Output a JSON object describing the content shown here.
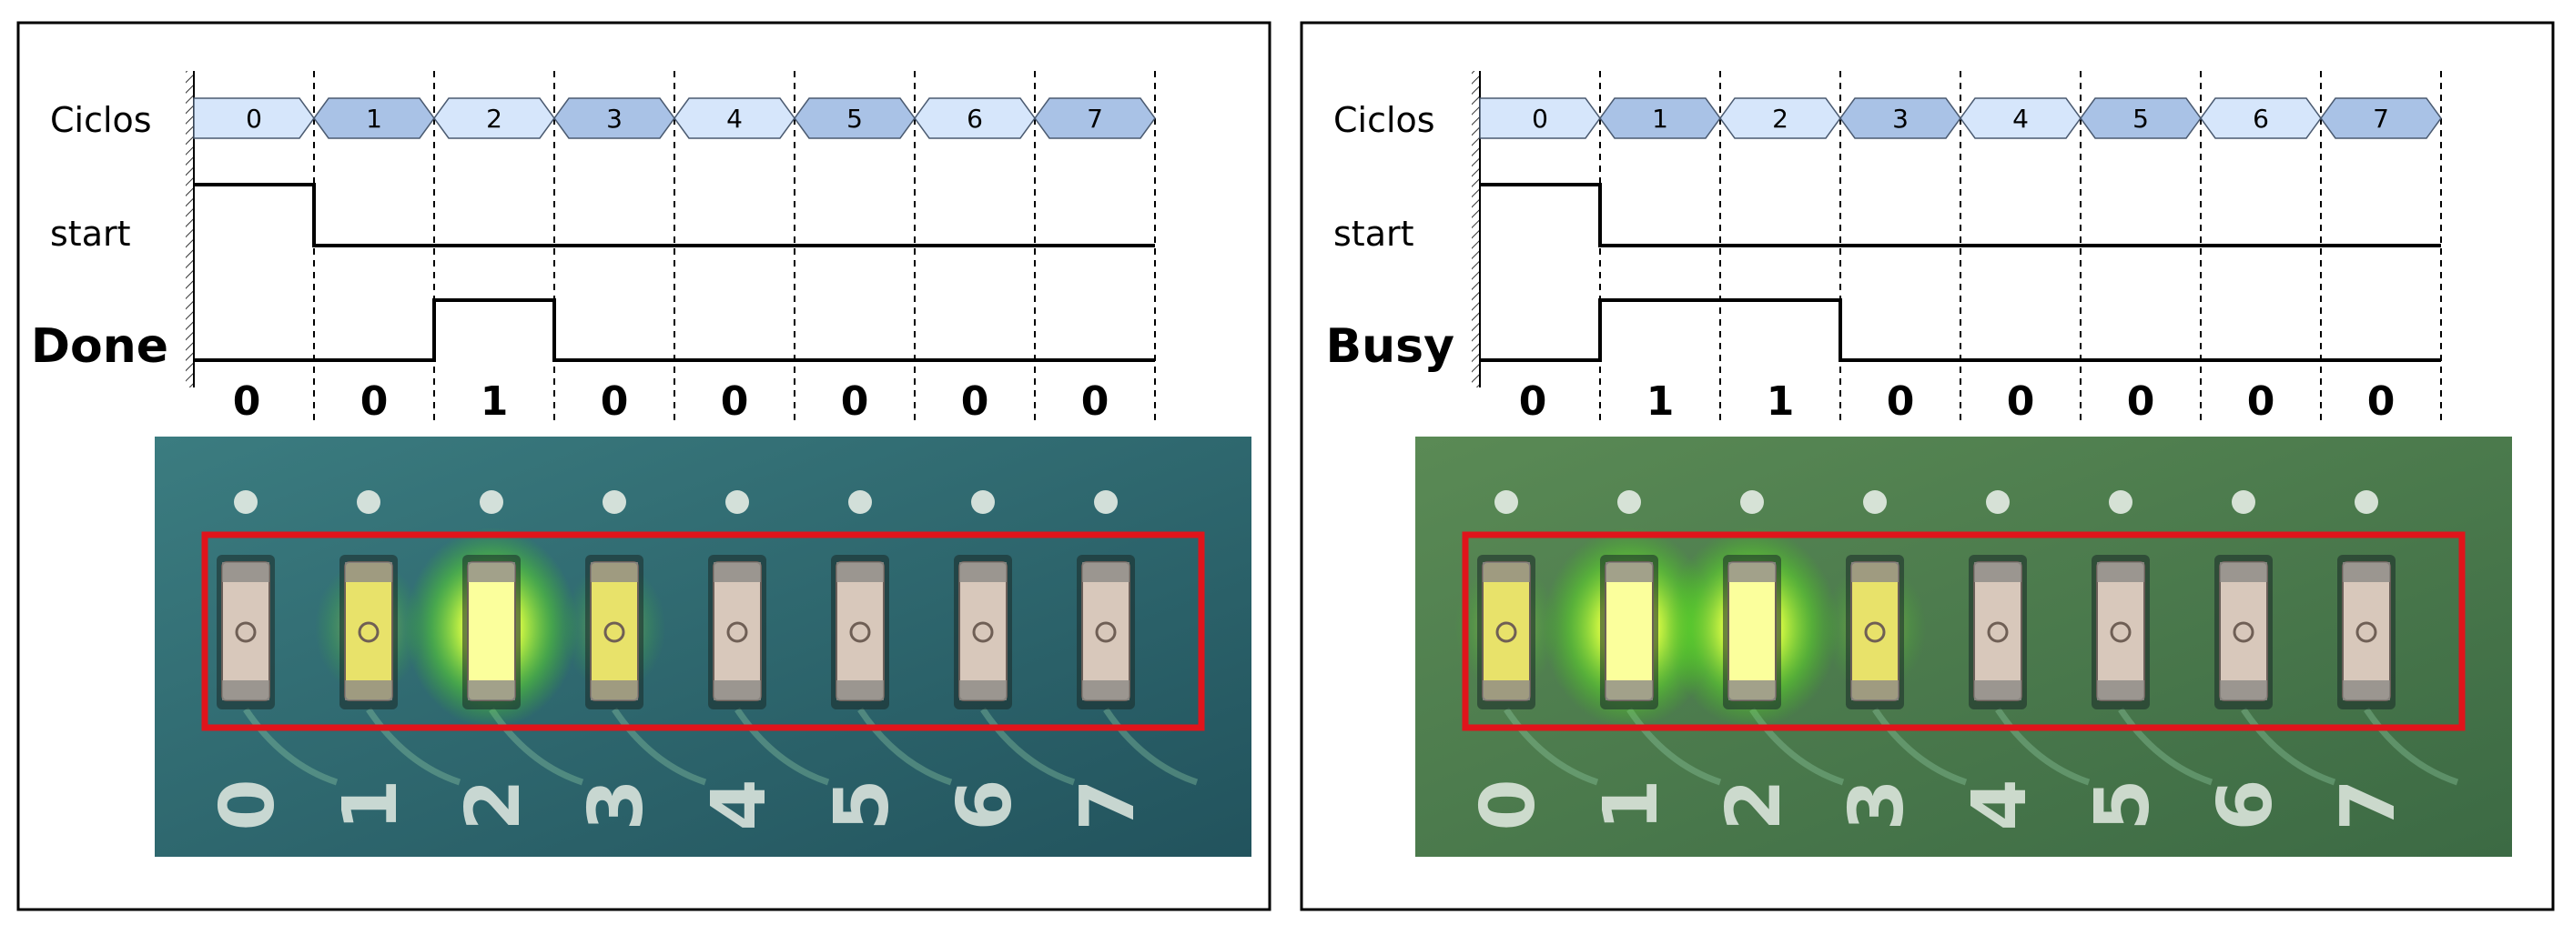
{
  "panels": [
    {
      "id": "left",
      "labels": {
        "cycles": "Ciclos",
        "start": "start",
        "signal": "Done"
      },
      "cycle_numbers": [
        "0",
        "1",
        "2",
        "3",
        "4",
        "5",
        "6",
        "7"
      ],
      "start_wave": [
        1,
        0,
        0,
        0,
        0,
        0,
        0,
        0
      ],
      "signal_wave": [
        0,
        0,
        1,
        0,
        0,
        0,
        0,
        0
      ],
      "bit_values": [
        "0",
        "0",
        "1",
        "0",
        "0",
        "0",
        "0",
        "0"
      ],
      "led_states": [
        0,
        0.35,
        1,
        0.3,
        0,
        0,
        0,
        0
      ],
      "led_digits": [
        "0",
        "1",
        "2",
        "3",
        "4",
        "5",
        "6",
        "7"
      ]
    },
    {
      "id": "right",
      "labels": {
        "cycles": "Ciclos",
        "start": "start",
        "signal": "Busy"
      },
      "cycle_numbers": [
        "0",
        "1",
        "2",
        "3",
        "4",
        "5",
        "6",
        "7"
      ],
      "start_wave": [
        1,
        0,
        0,
        0,
        0,
        0,
        0,
        0
      ],
      "signal_wave": [
        0,
        1,
        1,
        0,
        0,
        0,
        0,
        0
      ],
      "bit_values": [
        "0",
        "1",
        "1",
        "0",
        "0",
        "0",
        "0",
        "0"
      ],
      "led_states": [
        0.3,
        1,
        1,
        0.3,
        0,
        0,
        0,
        0
      ],
      "led_digits": [
        "0",
        "1",
        "2",
        "3",
        "4",
        "5",
        "6",
        "7"
      ]
    }
  ],
  "colors": {
    "cycle_light": "#d6e6fb",
    "cycle_dark": "#a9c2e6",
    "cycle_stroke": "#4a5a70",
    "board_left": "#2f6d73",
    "board_right": "#4f7a4c",
    "highlight": "#e0141b",
    "led_on": "#fbff9c",
    "led_glow": "#7dff2a",
    "led_off": "#d8c8bb",
    "silkscreen": "#e4ece4"
  }
}
